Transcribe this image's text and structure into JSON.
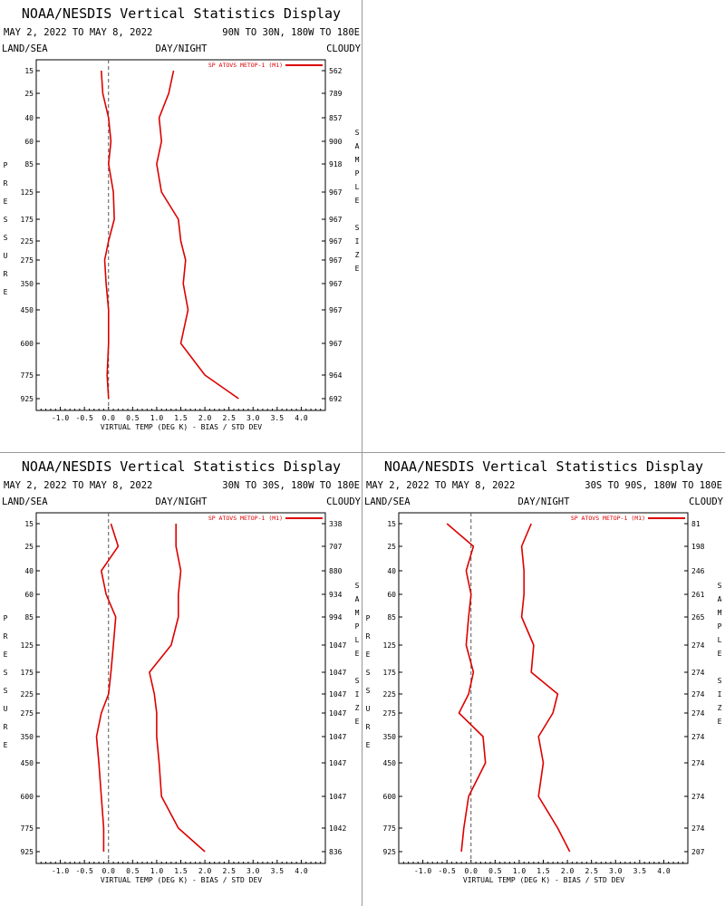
{
  "chart_data": [
    {
      "type": "line",
      "title": "NOAA/NESDIS Vertical Statistics Display",
      "date_range": "MAY 2, 2022 TO MAY 8, 2022",
      "region": "90N TO 30N, 180W TO 180E",
      "tag_left": "LAND/SEA",
      "tag_center": "DAY/NIGHT",
      "tag_right": "CLOUDY",
      "ylabel": "PRESSURE",
      "y2label": "SAMPLE SIZE",
      "xlabel": "VIRTUAL TEMP (DEG K) - BIAS / STD DEV",
      "x_ticks": [
        "-1.0",
        "-0.5",
        "0.0",
        "0.5",
        "1.0",
        "1.5",
        "2.0",
        "2.5",
        "3.0",
        "3.5",
        "4.0"
      ],
      "levels": [
        "15",
        "25",
        "40",
        "60",
        "85",
        "125",
        "175",
        "225",
        "275",
        "350",
        "450",
        "600",
        "775",
        "925"
      ],
      "sample_size": [
        "562",
        "789",
        "857",
        "900",
        "918",
        "967",
        "967",
        "967",
        "967",
        "967",
        "967",
        "967",
        "964",
        "692"
      ],
      "legend": "SP ATOVS METOP-1 (M1)",
      "series": [
        {
          "role": "bias",
          "values": [
            -0.15,
            -0.12,
            0.0,
            0.05,
            0.0,
            0.1,
            0.12,
            0.0,
            -0.08,
            -0.05,
            0.0,
            0.0,
            -0.03,
            0.0
          ]
        },
        {
          "role": "std_dev",
          "values": [
            1.35,
            1.25,
            1.05,
            1.1,
            1.0,
            1.1,
            1.45,
            1.5,
            1.6,
            1.55,
            1.65,
            1.5,
            2.0,
            2.7
          ]
        }
      ]
    },
    {
      "type": "line",
      "title": "NOAA/NESDIS Vertical Statistics Display",
      "date_range": "MAY 2, 2022 TO MAY 8, 2022",
      "region": "30N TO 30S, 180W TO 180E",
      "tag_left": "LAND/SEA",
      "tag_center": "DAY/NIGHT",
      "tag_right": "CLOUDY",
      "ylabel": "PRESSURE",
      "y2label": "SAMPLE SIZE",
      "xlabel": "VIRTUAL TEMP (DEG K) - BIAS / STD DEV",
      "x_ticks": [
        "-1.0",
        "-0.5",
        "0.0",
        "0.5",
        "1.0",
        "1.5",
        "2.0",
        "2.5",
        "3.0",
        "3.5",
        "4.0"
      ],
      "levels": [
        "15",
        "25",
        "40",
        "60",
        "85",
        "125",
        "175",
        "225",
        "275",
        "350",
        "450",
        "600",
        "775",
        "925"
      ],
      "sample_size": [
        "338",
        "707",
        "880",
        "934",
        "994",
        "1047",
        "1047",
        "1047",
        "1047",
        "1047",
        "1047",
        "1047",
        "1042",
        "836"
      ],
      "legend": "SP ATOVS METOP-1 (M1)",
      "series": [
        {
          "role": "bias",
          "values": [
            0.05,
            0.2,
            -0.15,
            -0.05,
            0.15,
            0.1,
            0.05,
            0.0,
            -0.15,
            -0.25,
            -0.2,
            -0.15,
            -0.1,
            -0.1
          ]
        },
        {
          "role": "std_dev",
          "values": [
            1.4,
            1.4,
            1.5,
            1.45,
            1.45,
            1.3,
            0.85,
            0.95,
            1.0,
            1.0,
            1.05,
            1.1,
            1.45,
            2.0
          ]
        }
      ]
    },
    {
      "type": "line",
      "title": "NOAA/NESDIS Vertical Statistics Display",
      "date_range": "MAY 2, 2022 TO MAY 8, 2022",
      "region": "30S TO 90S, 180W TO 180E",
      "tag_left": "LAND/SEA",
      "tag_center": "DAY/NIGHT",
      "tag_right": "CLOUDY",
      "ylabel": "PRESSURE",
      "y2label": "SAMPLE SIZE",
      "xlabel": "VIRTUAL TEMP (DEG K) - BIAS / STD DEV",
      "x_ticks": [
        "-1.0",
        "-0.5",
        "0.0",
        "0.5",
        "1.0",
        "1.5",
        "2.0",
        "2.5",
        "3.0",
        "3.5",
        "4.0"
      ],
      "levels": [
        "15",
        "25",
        "40",
        "60",
        "85",
        "125",
        "175",
        "225",
        "275",
        "350",
        "450",
        "600",
        "775",
        "925"
      ],
      "sample_size": [
        "81",
        "198",
        "246",
        "261",
        "265",
        "274",
        "274",
        "274",
        "274",
        "274",
        "274",
        "274",
        "274",
        "207"
      ],
      "legend": "SP ATOVS METOP-1 (M1)",
      "series": [
        {
          "role": "bias",
          "values": [
            -0.5,
            0.05,
            -0.1,
            0.0,
            -0.05,
            -0.1,
            0.05,
            -0.05,
            -0.25,
            0.25,
            0.3,
            -0.05,
            -0.15,
            -0.2
          ]
        },
        {
          "role": "std_dev",
          "values": [
            1.25,
            1.05,
            1.1,
            1.1,
            1.05,
            1.3,
            1.25,
            1.8,
            1.7,
            1.4,
            1.5,
            1.4,
            1.8,
            2.05
          ]
        }
      ]
    }
  ]
}
